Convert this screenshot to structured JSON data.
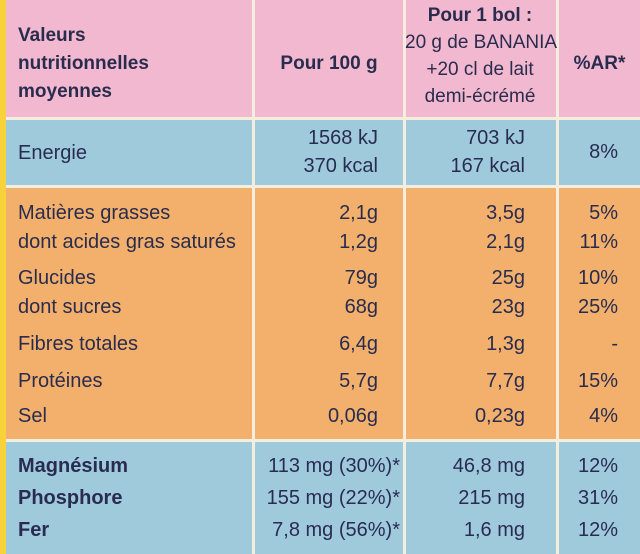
{
  "header": {
    "col_label_lines": [
      "Valeurs",
      "nutritionnelles",
      "moyennes"
    ],
    "col_100g": "Pour 100 g",
    "col_bol_lines": [
      "Pour 1 bol :",
      "20 g de BANANIA",
      "+20 cl de lait",
      "demi-écrémé"
    ],
    "col_ar": "%AR*"
  },
  "energy": {
    "label": "Energie",
    "per100_kj": "1568 kJ",
    "per100_kcal": "370 kcal",
    "bol_kj": "703 kJ",
    "bol_kcal": "167 kcal",
    "ar": "8%"
  },
  "rows": [
    {
      "label": "Matières grasses",
      "per100": "2,1g",
      "bol": "3,5g",
      "ar": "5%"
    },
    {
      "label": "dont acides gras saturés",
      "per100": "1,2g",
      "bol": "2,1g",
      "ar": "11%"
    },
    {
      "label": "Glucides",
      "per100": "79g",
      "bol": "25g",
      "ar": "10%"
    },
    {
      "label": "dont sucres",
      "per100": "68g",
      "bol": "23g",
      "ar": "25%"
    },
    {
      "label": "Fibres totales",
      "per100": "6,4g",
      "bol": "1,3g",
      "ar": "-"
    },
    {
      "label": "Protéines",
      "per100": "5,7g",
      "bol": "7,7g",
      "ar": "15%"
    },
    {
      "label": "Sel",
      "per100": "0,06g",
      "bol": "0,23g",
      "ar": "4%"
    }
  ],
  "minerals": [
    {
      "label": "Magnésium",
      "per100": "113 mg (30%)*",
      "bol": "46,8 mg",
      "ar": "12%"
    },
    {
      "label": "Phosphore",
      "per100": "155 mg (22%)*",
      "bol": "215 mg",
      "ar": "31%"
    },
    {
      "label": "Fer",
      "per100": "7,8 mg (56%)*",
      "bol": "1,6 mg",
      "ar": "12%"
    }
  ],
  "colors": {
    "header_bg": "#f1b8cf",
    "energy_bg": "#9fcadc",
    "main_bg": "#f2b06c",
    "edge_bg": "#f7d23a",
    "text": "#2a2c4e"
  }
}
